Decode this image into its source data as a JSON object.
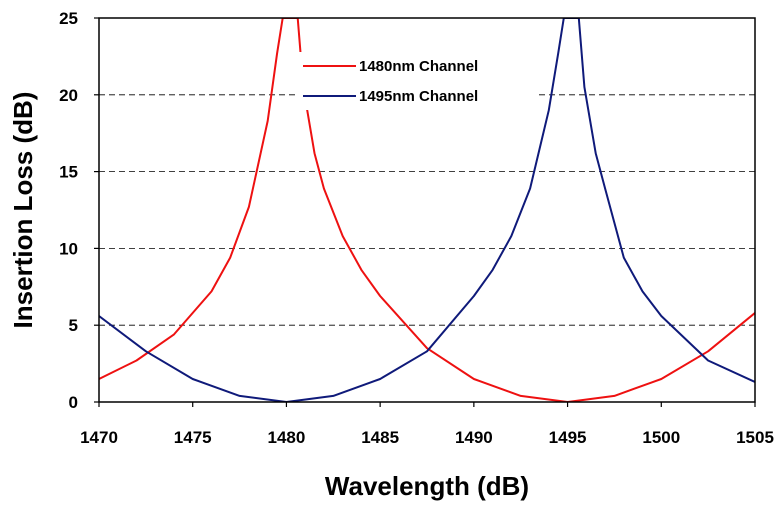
{
  "chart_data": {
    "type": "line",
    "xlabel": "Wavelength (dB)",
    "ylabel": "Insertion Loss (dB)",
    "xlim": [
      1470,
      1505
    ],
    "ylim": [
      0,
      25
    ],
    "xticks": [
      "1470",
      "1475",
      "1480",
      "1485",
      "1490",
      "1495",
      "1500",
      "1505"
    ],
    "yticks": [
      "0",
      "5",
      "10",
      "15",
      "20",
      "25"
    ],
    "grid": "horizontal dashed",
    "legend": "top-center",
    "series": [
      {
        "name": "1480nm Channel",
        "color": "#ee1111",
        "x": [
          1470,
          1472,
          1474,
          1476,
          1477,
          1478,
          1479,
          1479.5,
          1479.8,
          1480.6,
          1480.9,
          1481.5,
          1482,
          1483,
          1484,
          1485,
          1487.5,
          1490,
          1492.5,
          1495,
          1497.5,
          1500,
          1502.5,
          1505
        ],
        "values": [
          1.5,
          2.7,
          4.4,
          7.2,
          9.4,
          12.7,
          18.3,
          22.7,
          25,
          25,
          20.5,
          16.2,
          13.9,
          10.8,
          8.6,
          6.9,
          3.5,
          1.5,
          0.4,
          0,
          0.4,
          1.5,
          3.3,
          5.8
        ]
      },
      {
        "name": "1495nm Channel",
        "color": "#0f1a7a",
        "x": [
          1470,
          1472.5,
          1475,
          1477.5,
          1480,
          1482.5,
          1485,
          1487.5,
          1490,
          1491,
          1492,
          1493,
          1494,
          1494.5,
          1494.8,
          1495.6,
          1495.9,
          1496.5,
          1497,
          1498,
          1499,
          1500,
          1502.5,
          1505
        ],
        "values": [
          5.6,
          3.3,
          1.5,
          0.4,
          0,
          0.4,
          1.5,
          3.3,
          6.9,
          8.6,
          10.8,
          13.9,
          19.0,
          22.7,
          25,
          25,
          20.5,
          16.2,
          13.9,
          9.4,
          7.2,
          5.6,
          2.7,
          1.3
        ]
      }
    ]
  }
}
